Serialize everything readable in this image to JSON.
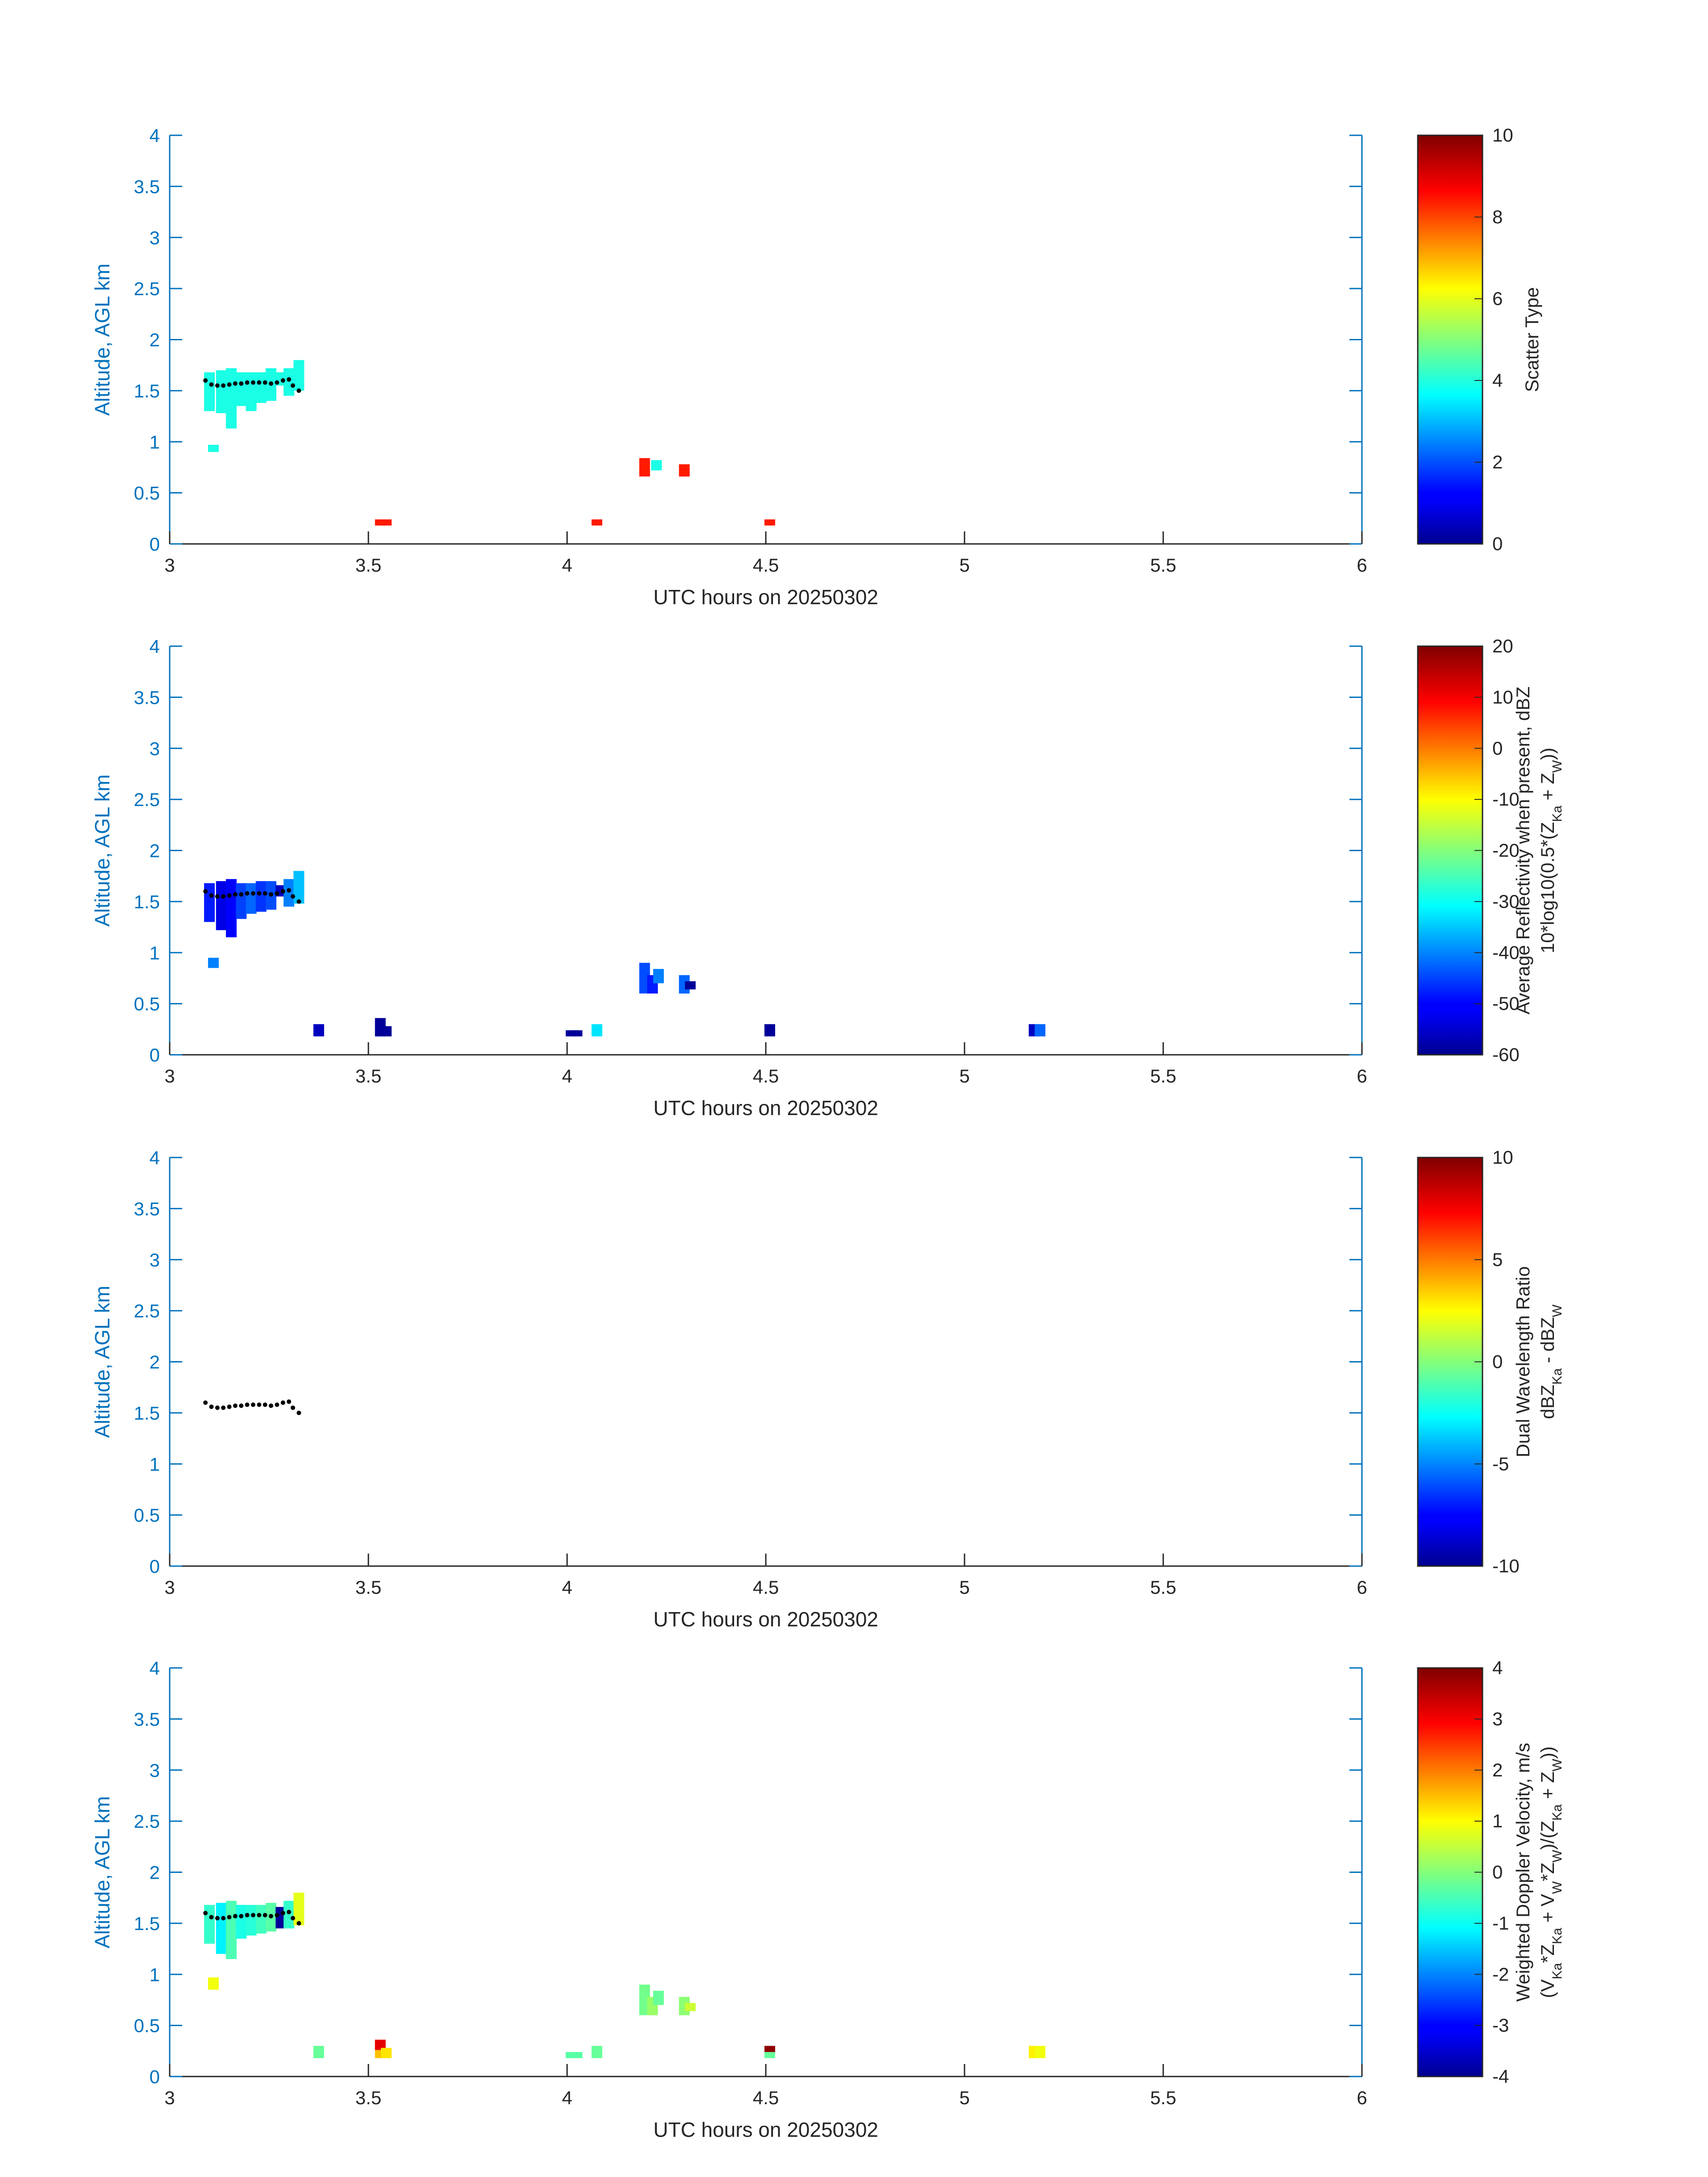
{
  "figure": {
    "date_label": "UTC hours on 20250302"
  },
  "chart_data": [
    {
      "type": "heatmap",
      "title": "",
      "xlabel": "UTC hours on 20250302",
      "ylabel": "Altitude, AGL km",
      "xlim": [
        3,
        6
      ],
      "ylim": [
        0,
        4
      ],
      "xticks": [
        "3",
        "3.5",
        "4",
        "4.5",
        "5",
        "5.5",
        "6"
      ],
      "yticks": [
        "0",
        "0.5",
        "1",
        "1.5",
        "2",
        "2.5",
        "3",
        "3.5",
        "4"
      ],
      "colorbar": {
        "label": [
          "Scatter Type"
        ],
        "range": [
          0,
          10
        ],
        "ticks": [
          "0",
          "2",
          "4",
          "6",
          "8",
          "10"
        ],
        "colormap": "jet"
      },
      "cells": [
        {
          "x": 3.1,
          "y0": 1.3,
          "y1": 1.68,
          "v": 4
        },
        {
          "x": 3.13,
          "y0": 1.28,
          "y1": 1.7,
          "v": 4
        },
        {
          "x": 3.155,
          "y0": 1.13,
          "y1": 1.72,
          "v": 4
        },
        {
          "x": 3.18,
          "y0": 1.35,
          "y1": 1.68,
          "v": 4
        },
        {
          "x": 3.205,
          "y0": 1.3,
          "y1": 1.68,
          "v": 4
        },
        {
          "x": 3.23,
          "y0": 1.38,
          "y1": 1.68,
          "v": 4
        },
        {
          "x": 3.255,
          "y0": 1.4,
          "y1": 1.72,
          "v": 4
        },
        {
          "x": 3.28,
          "y0": 1.55,
          "y1": 1.68,
          "v": 4
        },
        {
          "x": 3.3,
          "y0": 1.45,
          "y1": 1.72,
          "v": 4
        },
        {
          "x": 3.325,
          "y0": 1.5,
          "y1": 1.8,
          "v": 4
        },
        {
          "x": 3.11,
          "y0": 0.9,
          "y1": 0.97,
          "v": 4
        },
        {
          "x": 3.53,
          "y0": 0.18,
          "y1": 0.24,
          "v": 8.5
        },
        {
          "x": 3.545,
          "y0": 0.18,
          "y1": 0.24,
          "v": 8.5
        },
        {
          "x": 4.075,
          "y0": 0.18,
          "y1": 0.24,
          "v": 8.5
        },
        {
          "x": 4.195,
          "y0": 0.66,
          "y1": 0.84,
          "v": 8.5
        },
        {
          "x": 4.225,
          "y0": 0.72,
          "y1": 0.82,
          "v": 4
        },
        {
          "x": 4.295,
          "y0": 0.66,
          "y1": 0.78,
          "v": 8.5
        },
        {
          "x": 4.51,
          "y0": 0.18,
          "y1": 0.24,
          "v": 8.5
        }
      ],
      "dots": {
        "x": [
          3.09,
          3.105,
          3.12,
          3.135,
          3.15,
          3.165,
          3.18,
          3.195,
          3.21,
          3.225,
          3.24,
          3.255,
          3.27,
          3.285,
          3.3,
          3.31,
          3.325
        ],
        "y": [
          1.6,
          1.56,
          1.55,
          1.55,
          1.56,
          1.57,
          1.57,
          1.58,
          1.58,
          1.58,
          1.58,
          1.57,
          1.58,
          1.6,
          1.61,
          1.55,
          1.5
        ]
      }
    },
    {
      "type": "heatmap",
      "title": "",
      "xlabel": "UTC hours on 20250302",
      "ylabel": "Altitude, AGL km",
      "xlim": [
        3,
        6
      ],
      "ylim": [
        0,
        4
      ],
      "xticks": [
        "3",
        "3.5",
        "4",
        "4.5",
        "5",
        "5.5",
        "6"
      ],
      "yticks": [
        "0",
        "0.5",
        "1",
        "1.5",
        "2",
        "2.5",
        "3",
        "3.5",
        "4"
      ],
      "colorbar": {
        "label": [
          "Average Reflectivity when present, dBZ",
          "10*log10(0.5*(Z_Ka + Z_W))"
        ],
        "range": [
          -60,
          20
        ],
        "ticks": [
          "-60",
          "-50",
          "-40",
          "-30",
          "-20",
          "-10",
          "0",
          "10",
          "20"
        ],
        "colormap": "jet"
      },
      "cells": [
        {
          "x": 3.1,
          "y0": 1.3,
          "y1": 1.68,
          "v": -48
        },
        {
          "x": 3.13,
          "y0": 1.22,
          "y1": 1.7,
          "v": -52
        },
        {
          "x": 3.155,
          "y0": 1.15,
          "y1": 1.72,
          "v": -50
        },
        {
          "x": 3.18,
          "y0": 1.33,
          "y1": 1.68,
          "v": -45
        },
        {
          "x": 3.205,
          "y0": 1.38,
          "y1": 1.68,
          "v": -42
        },
        {
          "x": 3.23,
          "y0": 1.4,
          "y1": 1.7,
          "v": -46
        },
        {
          "x": 3.255,
          "y0": 1.42,
          "y1": 1.7,
          "v": -44
        },
        {
          "x": 3.28,
          "y0": 1.55,
          "y1": 1.66,
          "v": -55
        },
        {
          "x": 3.3,
          "y0": 1.45,
          "y1": 1.72,
          "v": -40
        },
        {
          "x": 3.325,
          "y0": 1.48,
          "y1": 1.8,
          "v": -35
        },
        {
          "x": 3.11,
          "y0": 0.85,
          "y1": 0.95,
          "v": -40
        },
        {
          "x": 3.375,
          "y0": 0.18,
          "y1": 0.3,
          "v": -55
        },
        {
          "x": 3.53,
          "y0": 0.18,
          "y1": 0.36,
          "v": -58
        },
        {
          "x": 3.545,
          "y0": 0.18,
          "y1": 0.28,
          "v": -58
        },
        {
          "x": 4.01,
          "y0": 0.18,
          "y1": 0.24,
          "v": -58
        },
        {
          "x": 4.025,
          "y0": 0.18,
          "y1": 0.24,
          "v": -58
        },
        {
          "x": 4.075,
          "y0": 0.18,
          "y1": 0.3,
          "v": -32
        },
        {
          "x": 4.195,
          "y0": 0.6,
          "y1": 0.9,
          "v": -44
        },
        {
          "x": 4.215,
          "y0": 0.6,
          "y1": 0.78,
          "v": -48
        },
        {
          "x": 4.23,
          "y0": 0.7,
          "y1": 0.84,
          "v": -40
        },
        {
          "x": 4.295,
          "y0": 0.6,
          "y1": 0.78,
          "v": -42
        },
        {
          "x": 4.31,
          "y0": 0.64,
          "y1": 0.72,
          "v": -58
        },
        {
          "x": 4.51,
          "y0": 0.18,
          "y1": 0.3,
          "v": -58
        },
        {
          "x": 5.175,
          "y0": 0.18,
          "y1": 0.3,
          "v": -55
        },
        {
          "x": 5.19,
          "y0": 0.18,
          "y1": 0.3,
          "v": -42
        }
      ],
      "dots": {
        "x": [
          3.09,
          3.105,
          3.12,
          3.135,
          3.15,
          3.165,
          3.18,
          3.195,
          3.21,
          3.225,
          3.24,
          3.255,
          3.27,
          3.285,
          3.3,
          3.31,
          3.325
        ],
        "y": [
          1.6,
          1.56,
          1.55,
          1.55,
          1.56,
          1.57,
          1.57,
          1.58,
          1.58,
          1.58,
          1.58,
          1.57,
          1.58,
          1.6,
          1.61,
          1.55,
          1.5
        ]
      }
    },
    {
      "type": "heatmap",
      "title": "",
      "xlabel": "UTC hours on 20250302",
      "ylabel": "Altitude, AGL km",
      "xlim": [
        3,
        6
      ],
      "ylim": [
        0,
        4
      ],
      "xticks": [
        "3",
        "3.5",
        "4",
        "4.5",
        "5",
        "5.5",
        "6"
      ],
      "yticks": [
        "0",
        "0.5",
        "1",
        "1.5",
        "2",
        "2.5",
        "3",
        "3.5",
        "4"
      ],
      "colorbar": {
        "label": [
          "Dual Wavelength Ratio",
          "dBZ_Ka - dBZ_W"
        ],
        "range": [
          -10,
          10
        ],
        "ticks": [
          "-10",
          "-5",
          "0",
          "5",
          "10"
        ],
        "colormap": "jet"
      },
      "cells": [],
      "dots": {
        "x": [
          3.09,
          3.105,
          3.12,
          3.135,
          3.15,
          3.165,
          3.18,
          3.195,
          3.21,
          3.225,
          3.24,
          3.255,
          3.27,
          3.285,
          3.3,
          3.31,
          3.325
        ],
        "y": [
          1.6,
          1.56,
          1.55,
          1.55,
          1.56,
          1.57,
          1.57,
          1.58,
          1.58,
          1.58,
          1.58,
          1.57,
          1.58,
          1.6,
          1.61,
          1.55,
          1.5
        ]
      }
    },
    {
      "type": "heatmap",
      "title": "",
      "xlabel": "UTC hours on 20250302",
      "ylabel": "Altitude, AGL km",
      "xlim": [
        3,
        6
      ],
      "ylim": [
        0,
        4
      ],
      "xticks": [
        "3",
        "3.5",
        "4",
        "4.5",
        "5",
        "5.5",
        "6"
      ],
      "yticks": [
        "0",
        "0.5",
        "1",
        "1.5",
        "2",
        "2.5",
        "3",
        "3.5",
        "4"
      ],
      "colorbar": {
        "label": [
          "Weighted Doppler Velocity, m/s",
          "(V_Ka*Z_Ka + V_W*Z_W)/(Z_Ka + Z_W))"
        ],
        "range": [
          -4,
          4
        ],
        "ticks": [
          "-4",
          "-3",
          "-2",
          "-1",
          "0",
          "1",
          "2",
          "3",
          "4"
        ],
        "colormap": "jet"
      },
      "cells": [
        {
          "x": 3.1,
          "y0": 1.3,
          "y1": 1.68,
          "v": -0.6
        },
        {
          "x": 3.13,
          "y0": 1.2,
          "y1": 1.7,
          "v": -1.1
        },
        {
          "x": 3.155,
          "y0": 1.15,
          "y1": 1.72,
          "v": -0.4
        },
        {
          "x": 3.18,
          "y0": 1.35,
          "y1": 1.68,
          "v": -0.8
        },
        {
          "x": 3.205,
          "y0": 1.38,
          "y1": 1.68,
          "v": -0.7
        },
        {
          "x": 3.23,
          "y0": 1.4,
          "y1": 1.68,
          "v": -0.5
        },
        {
          "x": 3.255,
          "y0": 1.42,
          "y1": 1.7,
          "v": -0.3
        },
        {
          "x": 3.28,
          "y0": 1.45,
          "y1": 1.66,
          "v": -3.8
        },
        {
          "x": 3.3,
          "y0": 1.45,
          "y1": 1.72,
          "v": -0.6
        },
        {
          "x": 3.325,
          "y0": 1.48,
          "y1": 1.8,
          "v": 0.8
        },
        {
          "x": 3.11,
          "y0": 0.85,
          "y1": 0.97,
          "v": 0.9
        },
        {
          "x": 3.375,
          "y0": 0.18,
          "y1": 0.3,
          "v": -0.2
        },
        {
          "x": 3.53,
          "y0": 0.18,
          "y1": 0.36,
          "v": 1.5
        },
        {
          "x": 3.53,
          "y0": 0.26,
          "y1": 0.36,
          "v": 3.2
        },
        {
          "x": 3.545,
          "y0": 0.18,
          "y1": 0.28,
          "v": 1.2
        },
        {
          "x": 4.01,
          "y0": 0.18,
          "y1": 0.24,
          "v": -0.3
        },
        {
          "x": 4.025,
          "y0": 0.18,
          "y1": 0.24,
          "v": -0.3
        },
        {
          "x": 4.075,
          "y0": 0.18,
          "y1": 0.3,
          "v": -0.2
        },
        {
          "x": 4.195,
          "y0": 0.6,
          "y1": 0.9,
          "v": -0.1
        },
        {
          "x": 4.215,
          "y0": 0.6,
          "y1": 0.78,
          "v": 0.2
        },
        {
          "x": 4.23,
          "y0": 0.7,
          "y1": 0.84,
          "v": -0.2
        },
        {
          "x": 4.295,
          "y0": 0.6,
          "y1": 0.78,
          "v": 0.1
        },
        {
          "x": 4.31,
          "y0": 0.64,
          "y1": 0.72,
          "v": 0.6
        },
        {
          "x": 4.51,
          "y0": 0.18,
          "y1": 0.24,
          "v": -0.2
        },
        {
          "x": 4.51,
          "y0": 0.24,
          "y1": 0.3,
          "v": 3.9
        },
        {
          "x": 5.175,
          "y0": 0.18,
          "y1": 0.3,
          "v": 1.1
        },
        {
          "x": 5.19,
          "y0": 0.18,
          "y1": 0.3,
          "v": 0.9
        }
      ],
      "dots": {
        "x": [
          3.09,
          3.105,
          3.12,
          3.135,
          3.15,
          3.165,
          3.18,
          3.195,
          3.21,
          3.225,
          3.24,
          3.255,
          3.27,
          3.285,
          3.3,
          3.31,
          3.325
        ],
        "y": [
          1.6,
          1.56,
          1.55,
          1.55,
          1.56,
          1.57,
          1.57,
          1.58,
          1.58,
          1.58,
          1.58,
          1.57,
          1.58,
          1.6,
          1.61,
          1.55,
          1.5
        ]
      }
    }
  ]
}
